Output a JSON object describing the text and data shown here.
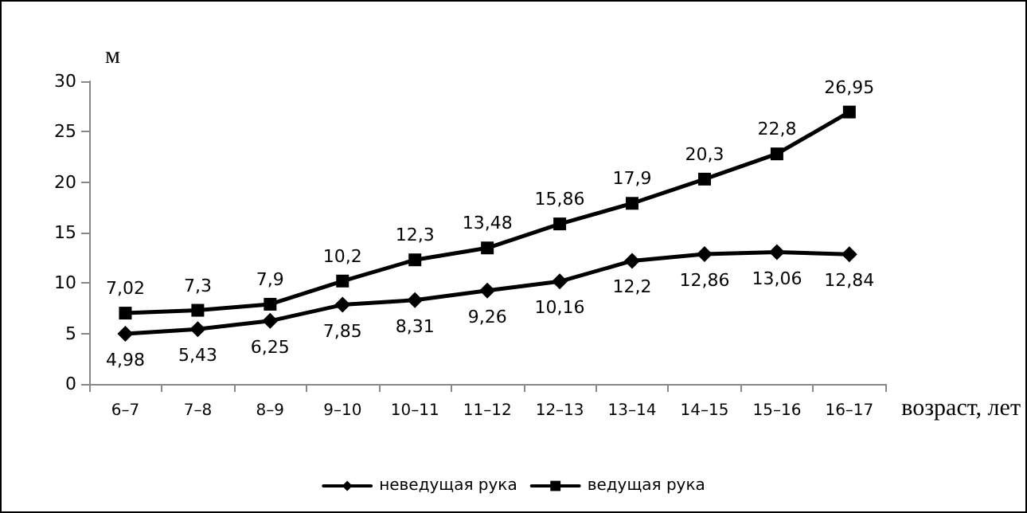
{
  "chart_data": {
    "type": "line",
    "xlabel": "возраст, лет",
    "ylabel": "м",
    "categories": [
      "6–7",
      "7–8",
      "8–9",
      "9–10",
      "10–11",
      "11–12",
      "12–13",
      "13–14",
      "14–15",
      "15–16",
      "16–17"
    ],
    "series": [
      {
        "name": "неведущая рука",
        "color": "#000000",
        "marker": "diamond",
        "values": [
          4.98,
          5.43,
          6.25,
          7.85,
          8.31,
          9.26,
          10.16,
          12.2,
          12.86,
          13.06,
          12.84
        ],
        "value_labels": [
          "4,98",
          "5,43",
          "6,25",
          "7,85",
          "8,31",
          "9,26",
          "10,16",
          "12,2",
          "12,86",
          "13,06",
          "12,84"
        ]
      },
      {
        "name": "ведущая рука",
        "color": "#000000",
        "marker": "square",
        "values": [
          7.02,
          7.3,
          7.9,
          10.2,
          12.3,
          13.48,
          15.86,
          17.9,
          20.3,
          22.8,
          26.95
        ],
        "value_labels": [
          "7,02",
          "7,3",
          "7,9",
          "10,2",
          "12,3",
          "13,48",
          "15,86",
          "17,9",
          "20,3",
          "22,8",
          "26,95"
        ]
      }
    ],
    "ylim": [
      0,
      30
    ],
    "yticks": [
      0,
      5,
      10,
      15,
      20,
      25,
      30
    ],
    "grid": false,
    "legend": "bottom",
    "line_style": "solid"
  }
}
